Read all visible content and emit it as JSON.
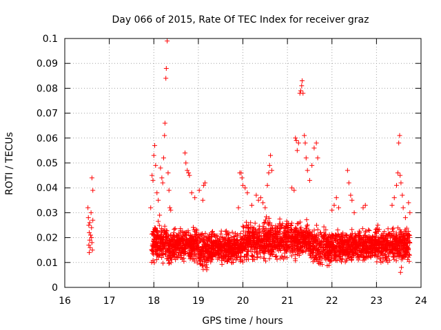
{
  "chart_data": {
    "type": "scatter",
    "title": "Day 066 of 2015, Rate Of TEC Index for receiver graz",
    "xlabel": "GPS time / hours",
    "ylabel": "ROTI / TECUs",
    "xlim": [
      16,
      24
    ],
    "ylim": [
      0,
      0.1
    ],
    "xticks": [
      16,
      17,
      18,
      19,
      20,
      21,
      22,
      23,
      24
    ],
    "xtick_labels": [
      "16",
      "17",
      "18",
      "19",
      "20",
      "21",
      "22",
      "23",
      "24"
    ],
    "yticks": [
      0,
      0.01,
      0.02,
      0.03,
      0.04,
      0.05,
      0.06,
      0.07,
      0.08,
      0.09,
      0.1
    ],
    "ytick_labels": [
      "0",
      "0.01",
      "0.02",
      "0.03",
      "0.04",
      "0.05",
      "0.06",
      "0.07",
      "0.08",
      "0.09",
      "0.1"
    ],
    "grid": true,
    "marker": "+",
    "color": "#ff0000",
    "series": [
      {
        "name": "ROTI",
        "points": [
          [
            16.52,
            0.032
          ],
          [
            16.53,
            0.028
          ],
          [
            16.54,
            0.025
          ],
          [
            16.55,
            0.022
          ],
          [
            16.56,
            0.019
          ],
          [
            16.57,
            0.016
          ],
          [
            16.55,
            0.014
          ],
          [
            16.58,
            0.021
          ],
          [
            16.6,
            0.024
          ],
          [
            16.61,
            0.018
          ],
          [
            16.62,
            0.015
          ],
          [
            16.63,
            0.027
          ],
          [
            16.59,
            0.03
          ],
          [
            16.61,
            0.044
          ],
          [
            16.63,
            0.039
          ],
          [
            16.6,
            0.02
          ],
          [
            16.54,
            0.017
          ],
          [
            16.56,
            0.026
          ],
          [
            17.93,
            0.032
          ],
          [
            17.96,
            0.045
          ],
          [
            17.98,
            0.043
          ],
          [
            18.0,
            0.053
          ],
          [
            18.02,
            0.057
          ],
          [
            18.04,
            0.049
          ],
          [
            18.07,
            0.038
          ],
          [
            18.1,
            0.035
          ],
          [
            18.13,
            0.029
          ],
          [
            18.15,
            0.048
          ],
          [
            18.18,
            0.044
          ],
          [
            18.2,
            0.042
          ],
          [
            18.22,
            0.052
          ],
          [
            18.24,
            0.061
          ],
          [
            18.25,
            0.066
          ],
          [
            18.27,
            0.084
          ],
          [
            18.28,
            0.088
          ],
          [
            18.3,
            0.099
          ],
          [
            18.32,
            0.046
          ],
          [
            18.34,
            0.039
          ],
          [
            18.36,
            0.032
          ],
          [
            18.38,
            0.031
          ],
          [
            18.7,
            0.054
          ],
          [
            18.72,
            0.05
          ],
          [
            18.75,
            0.047
          ],
          [
            18.78,
            0.046
          ],
          [
            18.8,
            0.045
          ],
          [
            18.85,
            0.038
          ],
          [
            18.92,
            0.036
          ],
          [
            19.02,
            0.039
          ],
          [
            19.1,
            0.035
          ],
          [
            19.12,
            0.041
          ],
          [
            19.15,
            0.042
          ],
          [
            19.9,
            0.032
          ],
          [
            19.93,
            0.046
          ],
          [
            19.96,
            0.046
          ],
          [
            19.98,
            0.044
          ],
          [
            20.0,
            0.041
          ],
          [
            20.05,
            0.04
          ],
          [
            20.1,
            0.038
          ],
          [
            20.2,
            0.033
          ],
          [
            20.3,
            0.037
          ],
          [
            20.35,
            0.035
          ],
          [
            20.4,
            0.036
          ],
          [
            20.45,
            0.034
          ],
          [
            20.5,
            0.032
          ],
          [
            20.55,
            0.041
          ],
          [
            20.58,
            0.046
          ],
          [
            20.6,
            0.049
          ],
          [
            20.62,
            0.053
          ],
          [
            20.65,
            0.047
          ],
          [
            21.1,
            0.04
          ],
          [
            21.15,
            0.039
          ],
          [
            21.18,
            0.06
          ],
          [
            21.2,
            0.059
          ],
          [
            21.22,
            0.055
          ],
          [
            21.25,
            0.058
          ],
          [
            21.28,
            0.078
          ],
          [
            21.3,
            0.079
          ],
          [
            21.32,
            0.081
          ],
          [
            21.33,
            0.083
          ],
          [
            21.35,
            0.078
          ],
          [
            21.38,
            0.061
          ],
          [
            21.4,
            0.058
          ],
          [
            21.42,
            0.052
          ],
          [
            21.45,
            0.047
          ],
          [
            21.5,
            0.043
          ],
          [
            21.55,
            0.049
          ],
          [
            21.6,
            0.056
          ],
          [
            21.65,
            0.058
          ],
          [
            21.68,
            0.052
          ],
          [
            22.0,
            0.031
          ],
          [
            22.05,
            0.033
          ],
          [
            22.1,
            0.036
          ],
          [
            22.15,
            0.032
          ],
          [
            22.35,
            0.047
          ],
          [
            22.38,
            0.042
          ],
          [
            22.42,
            0.037
          ],
          [
            22.45,
            0.035
          ],
          [
            22.5,
            0.03
          ],
          [
            22.7,
            0.032
          ],
          [
            22.75,
            0.033
          ],
          [
            23.35,
            0.033
          ],
          [
            23.4,
            0.036
          ],
          [
            23.45,
            0.041
          ],
          [
            23.48,
            0.046
          ],
          [
            23.5,
            0.058
          ],
          [
            23.52,
            0.061
          ],
          [
            23.53,
            0.045
          ],
          [
            23.55,
            0.042
          ],
          [
            23.58,
            0.037
          ],
          [
            23.6,
            0.032
          ],
          [
            23.65,
            0.028
          ],
          [
            23.72,
            0.034
          ],
          [
            23.75,
            0.03
          ],
          [
            23.54,
            0.006
          ],
          [
            23.56,
            0.008
          ]
        ]
      }
    ],
    "dense_band": {
      "segments": [
        {
          "x_start": 17.95,
          "x_end": 18.3,
          "y_low": 0.008,
          "y_high": 0.028
        },
        {
          "x_start": 18.3,
          "x_end": 19.0,
          "y_low": 0.008,
          "y_high": 0.026
        },
        {
          "x_start": 19.0,
          "x_end": 19.3,
          "y_low": 0.005,
          "y_high": 0.025
        },
        {
          "x_start": 19.3,
          "x_end": 20.0,
          "y_low": 0.008,
          "y_high": 0.024
        },
        {
          "x_start": 20.0,
          "x_end": 20.5,
          "y_low": 0.009,
          "y_high": 0.028
        },
        {
          "x_start": 20.5,
          "x_end": 21.0,
          "y_low": 0.009,
          "y_high": 0.03
        },
        {
          "x_start": 21.0,
          "x_end": 21.5,
          "y_low": 0.01,
          "y_high": 0.028
        },
        {
          "x_start": 21.5,
          "x_end": 22.0,
          "y_low": 0.007,
          "y_high": 0.026
        },
        {
          "x_start": 22.0,
          "x_end": 22.5,
          "y_low": 0.008,
          "y_high": 0.025
        },
        {
          "x_start": 22.5,
          "x_end": 23.0,
          "y_low": 0.009,
          "y_high": 0.025
        },
        {
          "x_start": 23.0,
          "x_end": 23.75,
          "y_low": 0.008,
          "y_high": 0.026
        }
      ],
      "approx_points_per_hour": 520,
      "typical_value": 0.016
    }
  }
}
